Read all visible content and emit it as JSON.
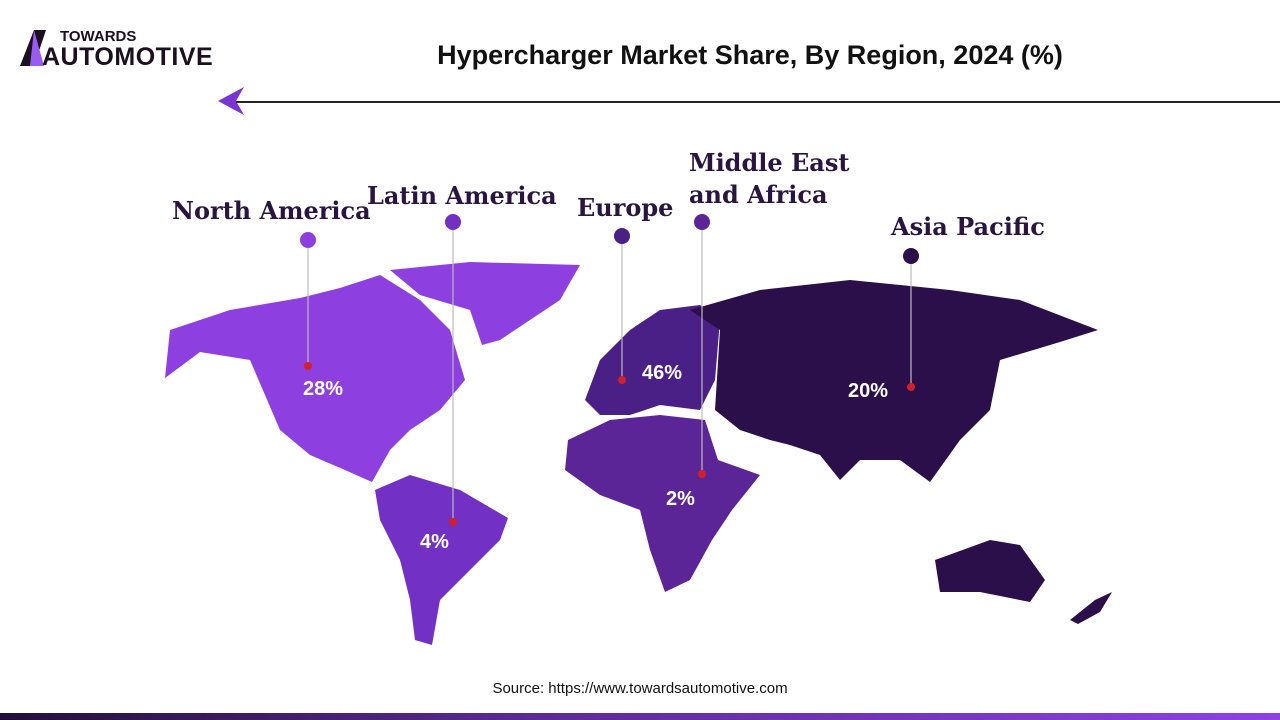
{
  "logo": {
    "top": "TOWARDS",
    "main": "AUTOMOTIVE"
  },
  "title": "Hypercharger Market Share, By Region, 2024 (%)",
  "regions": [
    {
      "name": "North America",
      "value": "28%",
      "color": "#8e3fe0"
    },
    {
      "name": "Latin America",
      "value": "4%",
      "color": "#7230c4"
    },
    {
      "name": "Europe",
      "value": "46%",
      "color": "#4a1f86"
    },
    {
      "name": "Middle East and Africa",
      "value": "2%",
      "color": "#5b2598"
    },
    {
      "name": "Asia Pacific",
      "value": "20%",
      "color": "#2a0f4a"
    }
  ],
  "source": "Source: https://www.towardsautomotive.com"
}
